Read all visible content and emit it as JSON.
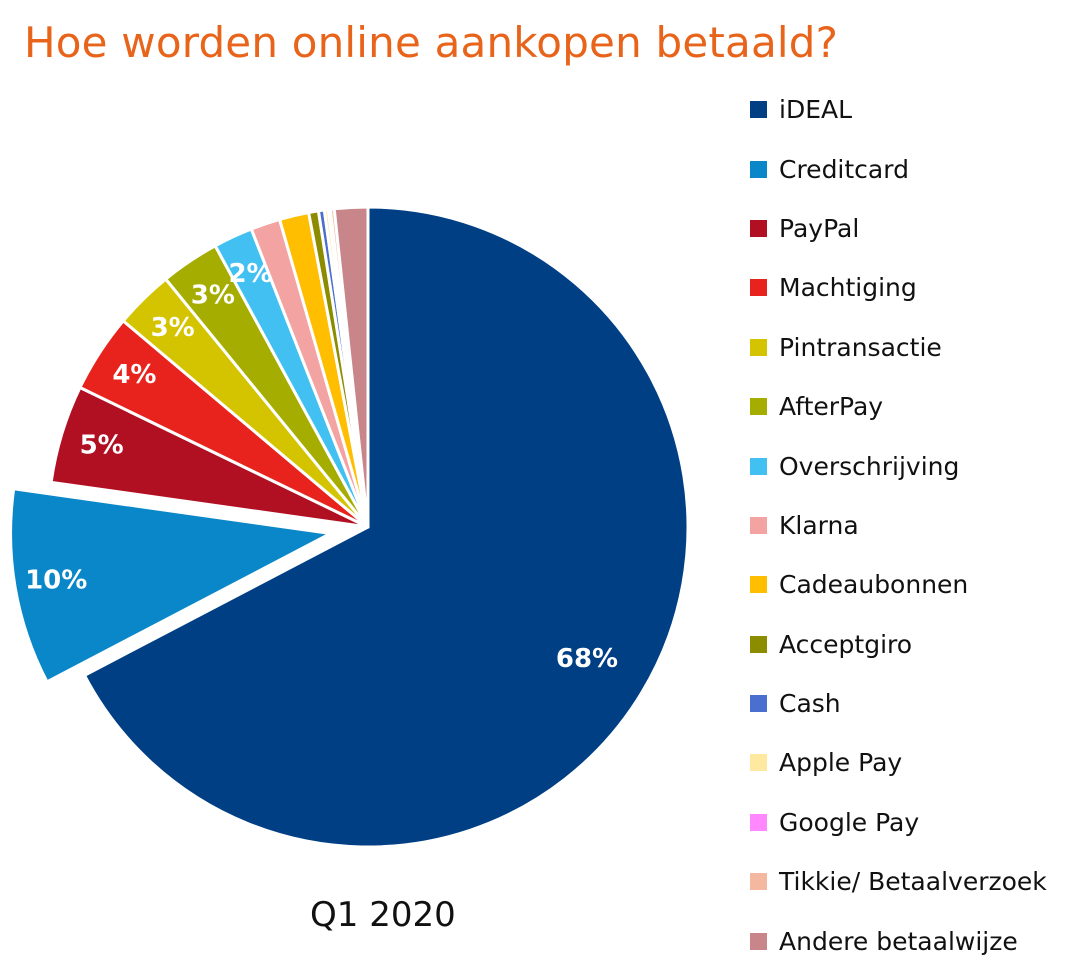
{
  "chart_data": {
    "type": "pie",
    "title": "Hoe worden online aankopen betaald?",
    "subtitle": "Q1 2020",
    "legend_position": "right",
    "exploded": [
      "Creditcard"
    ],
    "slices": [
      {
        "name": "iDEAL",
        "value": 68,
        "label": "68%",
        "color": "#003f84"
      },
      {
        "name": "Creditcard",
        "value": 10,
        "label": "10%",
        "color": "#0a87c8"
      },
      {
        "name": "PayPal",
        "value": 5,
        "label": "5%",
        "color": "#b01022"
      },
      {
        "name": "Machtiging",
        "value": 4,
        "label": "4%",
        "color": "#e8231d"
      },
      {
        "name": "Pintransactie",
        "value": 3,
        "label": "3%",
        "color": "#d4c400"
      },
      {
        "name": "AfterPay",
        "value": 3,
        "label": "3%",
        "color": "#a5ad00"
      },
      {
        "name": "Overschrijving",
        "value": 2,
        "label": "2%",
        "color": "#43c0f2"
      },
      {
        "name": "Klarna",
        "value": 1.5,
        "label": "",
        "color": "#f4a3a3"
      },
      {
        "name": "Cadeaubonnen",
        "value": 1.5,
        "label": "",
        "color": "#ffbf00"
      },
      {
        "name": "Acceptgiro",
        "value": 0.5,
        "label": "",
        "color": "#8c8c00"
      },
      {
        "name": "Cash",
        "value": 0.3,
        "label": "",
        "color": "#4a6fcf"
      },
      {
        "name": "Apple Pay",
        "value": 0.2,
        "label": "",
        "color": "#ffe8a0"
      },
      {
        "name": "Google Pay",
        "value": 0.1,
        "label": "",
        "color": "#ff88ff"
      },
      {
        "name": "Tikkie/ Betaalverzoek",
        "value": 0.2,
        "label": "",
        "color": "#f4b8a0"
      },
      {
        "name": "Andere betaalwijze",
        "value": 1.7,
        "label": "",
        "color": "#c9868a"
      }
    ]
  }
}
